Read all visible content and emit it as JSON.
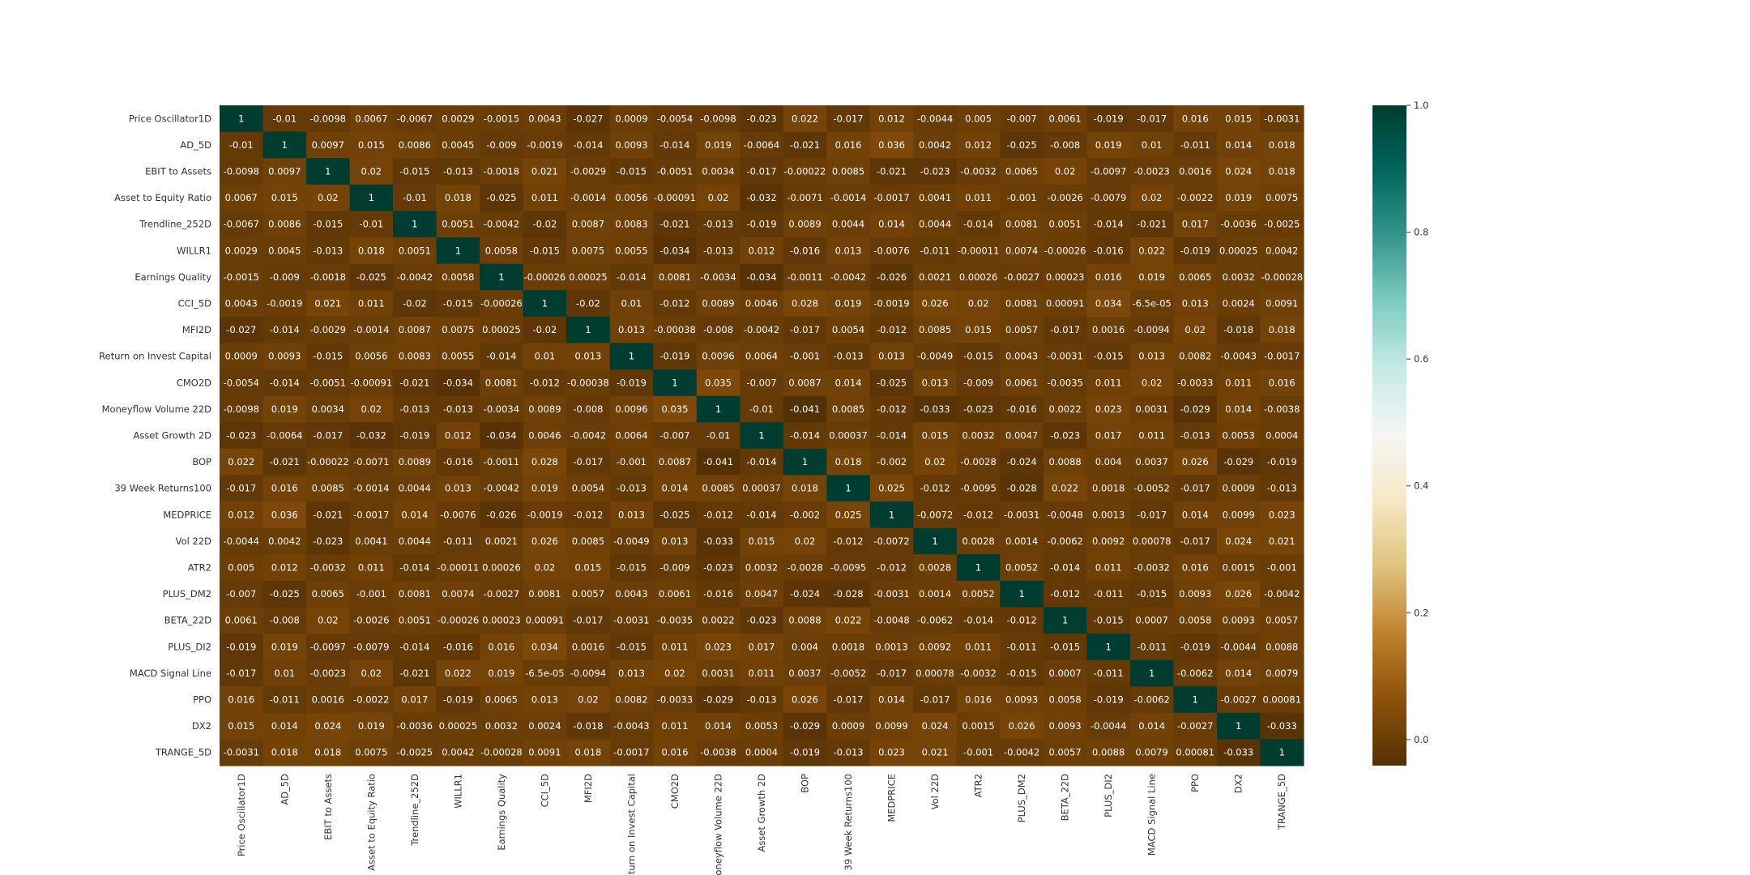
{
  "chart_data": {
    "type": "heatmap",
    "title": "",
    "xlabel": "",
    "ylabel": "",
    "labels": [
      "Price Oscillator1D",
      "AD_5D",
      "EBIT to Assets",
      "Asset to Equity Ratio",
      "Trendline_252D",
      "WILLR1",
      "Earnings Quality",
      "CCI_5D",
      "MFI2D",
      "Return on Invest Capital",
      "CMO2D",
      "Moneyflow Volume 22D",
      "Asset Growth 2D",
      "BOP",
      "39 Week Returns100",
      "MEDPRICE",
      "Vol 22D",
      "ATR2",
      "PLUS_DM2",
      "BETA_22D",
      "PLUS_DI2",
      "MACD Signal Line",
      "PPO",
      "DX2",
      "TRANGE_5D"
    ],
    "matrix_text": [
      [
        "1",
        "-0.01",
        "-0.0098",
        "0.0067",
        "-0.0067",
        "0.0029",
        "-0.0015",
        "0.0043",
        "-0.027",
        "0.0009",
        "-0.0054",
        "-0.0098",
        "-0.023",
        "0.022",
        "-0.017",
        "0.012",
        "-0.0044",
        "0.005",
        "-0.007",
        "0.0061",
        "-0.019",
        "-0.017",
        "0.016",
        "0.015",
        "-0.0031"
      ],
      [
        "-0.01",
        "1",
        "0.0097",
        "0.015",
        "0.0086",
        "0.0045",
        "-0.009",
        "-0.0019",
        "-0.014",
        "0.0093",
        "-0.014",
        "0.019",
        "-0.0064",
        "-0.021",
        "0.016",
        "0.036",
        "0.0042",
        "0.012",
        "-0.025",
        "-0.008",
        "0.019",
        "0.01",
        "-0.011",
        "0.014",
        "0.018"
      ],
      [
        "-0.0098",
        "0.0097",
        "1",
        "0.02",
        "-0.015",
        "-0.013",
        "-0.0018",
        "0.021",
        "-0.0029",
        "-0.015",
        "-0.0051",
        "0.0034",
        "-0.017",
        "-0.00022",
        "0.0085",
        "-0.021",
        "-0.023",
        "-0.0032",
        "0.0065",
        "0.02",
        "-0.0097",
        "-0.0023",
        "0.0016",
        "0.024",
        "0.018"
      ],
      [
        "0.0067",
        "0.015",
        "0.02",
        "1",
        "-0.01",
        "0.018",
        "-0.025",
        "0.011",
        "-0.0014",
        "0.0056",
        "-0.00091",
        "0.02",
        "-0.032",
        "-0.0071",
        "-0.0014",
        "-0.0017",
        "0.0041",
        "0.011",
        "-0.001",
        "-0.0026",
        "-0.0079",
        "0.02",
        "-0.0022",
        "0.019",
        "0.0075"
      ],
      [
        "-0.0067",
        "0.0086",
        "-0.015",
        "-0.01",
        "1",
        "0.0051",
        "-0.0042",
        "-0.02",
        "0.0087",
        "0.0083",
        "-0.021",
        "-0.013",
        "-0.019",
        "0.0089",
        "0.0044",
        "0.014",
        "0.0044",
        "-0.014",
        "0.0081",
        "0.0051",
        "-0.014",
        "-0.021",
        "0.017",
        "-0.0036",
        "-0.0025"
      ],
      [
        "0.0029",
        "0.0045",
        "-0.013",
        "0.018",
        "0.0051",
        "1",
        "0.0058",
        "-0.015",
        "0.0075",
        "0.0055",
        "-0.034",
        "-0.013",
        "0.012",
        "-0.016",
        "0.013",
        "-0.0076",
        "-0.011",
        "-0.00011",
        "0.0074",
        "-0.00026",
        "-0.016",
        "0.022",
        "-0.019",
        "0.00025",
        "0.0042"
      ],
      [
        "-0.0015",
        "-0.009",
        "-0.0018",
        "-0.025",
        "-0.0042",
        "0.0058",
        "1",
        "-0.00026",
        "0.00025",
        "-0.014",
        "0.0081",
        "-0.0034",
        "-0.034",
        "-0.0011",
        "-0.0042",
        "-0.026",
        "0.0021",
        "0.00026",
        "-0.0027",
        "0.00023",
        "0.016",
        "0.019",
        "0.0065",
        "0.0032",
        "-0.00028"
      ],
      [
        "0.0043",
        "-0.0019",
        "0.021",
        "0.011",
        "-0.02",
        "-0.015",
        "-0.00026",
        "1",
        "-0.02",
        "0.01",
        "-0.012",
        "0.0089",
        "0.0046",
        "0.028",
        "0.019",
        "-0.0019",
        "0.026",
        "0.02",
        "0.0081",
        "0.00091",
        "0.034",
        "-6.5e-05",
        "0.013",
        "0.0024",
        "0.0091"
      ],
      [
        "-0.027",
        "-0.014",
        "-0.0029",
        "-0.0014",
        "0.0087",
        "0.0075",
        "0.00025",
        "-0.02",
        "1",
        "0.013",
        "-0.00038",
        "-0.008",
        "-0.0042",
        "-0.017",
        "0.0054",
        "-0.012",
        "0.0085",
        "0.015",
        "0.0057",
        "-0.017",
        "0.0016",
        "-0.0094",
        "0.02",
        "-0.018",
        "0.018"
      ],
      [
        "0.0009",
        "0.0093",
        "-0.015",
        "0.0056",
        "0.0083",
        "0.0055",
        "-0.014",
        "0.01",
        "0.013",
        "1",
        "-0.019",
        "0.0096",
        "0.0064",
        "-0.001",
        "-0.013",
        "0.013",
        "-0.0049",
        "-0.015",
        "0.0043",
        "-0.0031",
        "-0.015",
        "0.013",
        "0.0082",
        "-0.0043",
        "-0.0017"
      ],
      [
        "-0.0054",
        "-0.014",
        "-0.0051",
        "-0.00091",
        "-0.021",
        "-0.034",
        "0.0081",
        "-0.012",
        "-0.00038",
        "-0.019",
        "1",
        "0.035",
        "-0.007",
        "0.0087",
        "0.014",
        "-0.025",
        "0.013",
        "-0.009",
        "0.0061",
        "-0.0035",
        "0.011",
        "0.02",
        "-0.0033",
        "0.011",
        "0.016"
      ],
      [
        "-0.0098",
        "0.019",
        "0.0034",
        "0.02",
        "-0.013",
        "-0.013",
        "-0.0034",
        "0.0089",
        "-0.008",
        "0.0096",
        "0.035",
        "1",
        "-0.01",
        "-0.041",
        "0.0085",
        "-0.012",
        "-0.033",
        "-0.023",
        "-0.016",
        "0.0022",
        "0.023",
        "0.0031",
        "-0.029",
        "0.014",
        "-0.0038"
      ],
      [
        "-0.023",
        "-0.0064",
        "-0.017",
        "-0.032",
        "-0.019",
        "0.012",
        "-0.034",
        "0.0046",
        "-0.0042",
        "0.0064",
        "-0.007",
        "-0.01",
        "1",
        "-0.014",
        "0.00037",
        "-0.014",
        "0.015",
        "0.0032",
        "0.0047",
        "-0.023",
        "0.017",
        "0.011",
        "-0.013",
        "0.0053",
        "0.0004"
      ],
      [
        "0.022",
        "-0.021",
        "-0.00022",
        "-0.0071",
        "0.0089",
        "-0.016",
        "-0.0011",
        "0.028",
        "-0.017",
        "-0.001",
        "0.0087",
        "-0.041",
        "-0.014",
        "1",
        "0.018",
        "-0.002",
        "0.02",
        "-0.0028",
        "-0.024",
        "0.0088",
        "0.004",
        "0.0037",
        "0.026",
        "-0.029",
        "-0.019"
      ],
      [
        "-0.017",
        "0.016",
        "0.0085",
        "-0.0014",
        "0.0044",
        "0.013",
        "-0.0042",
        "0.019",
        "0.0054",
        "-0.013",
        "0.014",
        "0.0085",
        "0.00037",
        "0.018",
        "1",
        "0.025",
        "-0.012",
        "-0.0095",
        "-0.028",
        "0.022",
        "0.0018",
        "-0.0052",
        "-0.017",
        "0.0009",
        "-0.013"
      ],
      [
        "0.012",
        "0.036",
        "-0.021",
        "-0.0017",
        "0.014",
        "-0.0076",
        "-0.026",
        "-0.0019",
        "-0.012",
        "0.013",
        "-0.025",
        "-0.012",
        "-0.014",
        "-0.002",
        "0.025",
        "1",
        "-0.0072",
        "-0.012",
        "-0.0031",
        "-0.0048",
        "0.0013",
        "-0.017",
        "0.014",
        "0.0099",
        "0.023"
      ],
      [
        "-0.0044",
        "0.0042",
        "-0.023",
        "0.0041",
        "0.0044",
        "-0.011",
        "0.0021",
        "0.026",
        "0.0085",
        "-0.0049",
        "0.013",
        "-0.033",
        "0.015",
        "0.02",
        "-0.012",
        "-0.0072",
        "1",
        "0.0028",
        "0.0014",
        "-0.0062",
        "0.0092",
        "0.00078",
        "-0.017",
        "0.024",
        "0.021"
      ],
      [
        "0.005",
        "0.012",
        "-0.0032",
        "0.011",
        "-0.014",
        "-0.00011",
        "0.00026",
        "0.02",
        "0.015",
        "-0.015",
        "-0.009",
        "-0.023",
        "0.0032",
        "-0.0028",
        "-0.0095",
        "-0.012",
        "0.0028",
        "1",
        "0.0052",
        "-0.014",
        "0.011",
        "-0.0032",
        "0.016",
        "0.0015",
        "-0.001"
      ],
      [
        "-0.007",
        "-0.025",
        "0.0065",
        "-0.001",
        "0.0081",
        "0.0074",
        "-0.0027",
        "0.0081",
        "0.0057",
        "0.0043",
        "0.0061",
        "-0.016",
        "0.0047",
        "-0.024",
        "-0.028",
        "-0.0031",
        "0.0014",
        "0.0052",
        "1",
        "-0.012",
        "-0.011",
        "-0.015",
        "0.0093",
        "0.026",
        "-0.0042"
      ],
      [
        "0.0061",
        "-0.008",
        "0.02",
        "-0.0026",
        "0.0051",
        "-0.00026",
        "0.00023",
        "0.00091",
        "-0.017",
        "-0.0031",
        "-0.0035",
        "0.0022",
        "-0.023",
        "0.0088",
        "0.022",
        "-0.0048",
        "-0.0062",
        "-0.014",
        "-0.012",
        "1",
        "-0.015",
        "0.0007",
        "0.0058",
        "0.0093",
        "0.0057"
      ],
      [
        "-0.019",
        "0.019",
        "-0.0097",
        "-0.0079",
        "-0.014",
        "-0.016",
        "0.016",
        "0.034",
        "0.0016",
        "-0.015",
        "0.011",
        "0.023",
        "0.017",
        "0.004",
        "0.0018",
        "0.0013",
        "0.0092",
        "0.011",
        "-0.011",
        "-0.015",
        "1",
        "-0.011",
        "-0.019",
        "-0.0044",
        "0.0088"
      ],
      [
        "-0.017",
        "0.01",
        "-0.0023",
        "0.02",
        "-0.021",
        "0.022",
        "0.019",
        "-6.5e-05",
        "-0.0094",
        "0.013",
        "0.02",
        "0.0031",
        "0.011",
        "0.0037",
        "-0.0052",
        "-0.017",
        "0.00078",
        "-0.0032",
        "-0.015",
        "0.0007",
        "-0.011",
        "1",
        "-0.0062",
        "0.014",
        "0.0079"
      ],
      [
        "0.016",
        "-0.011",
        "0.0016",
        "-0.0022",
        "0.017",
        "-0.019",
        "0.0065",
        "0.013",
        "0.02",
        "0.0082",
        "-0.0033",
        "-0.029",
        "-0.013",
        "0.026",
        "-0.017",
        "0.014",
        "-0.017",
        "0.016",
        "0.0093",
        "0.0058",
        "-0.019",
        "-0.0062",
        "1",
        "-0.0027",
        "0.00081"
      ],
      [
        "0.015",
        "0.014",
        "0.024",
        "0.019",
        "-0.0036",
        "0.00025",
        "0.0032",
        "0.0024",
        "-0.018",
        "-0.0043",
        "0.011",
        "0.014",
        "0.0053",
        "-0.029",
        "0.0009",
        "0.0099",
        "0.024",
        "0.0015",
        "0.026",
        "0.0093",
        "-0.0044",
        "0.014",
        "-0.0027",
        "1",
        "-0.033"
      ],
      [
        "-0.0031",
        "0.018",
        "0.018",
        "0.0075",
        "-0.0025",
        "0.0042",
        "-0.00028",
        "0.0091",
        "0.018",
        "-0.0017",
        "0.016",
        "-0.0038",
        "0.0004",
        "-0.019",
        "-0.013",
        "0.023",
        "0.021",
        "-0.001",
        "-0.0042",
        "0.0057",
        "0.0088",
        "0.0079",
        "0.00081",
        "-0.033",
        "1"
      ]
    ],
    "colorbar": {
      "colormap": "BrBG",
      "vmin": -0.041,
      "vmax": 1.0,
      "ticks": [
        "0.0",
        "0.2",
        "0.4",
        "0.6",
        "0.8",
        "1.0"
      ],
      "tick_values": [
        0.0,
        0.2,
        0.4,
        0.6,
        0.8,
        1.0
      ]
    },
    "annotation_color": "#ffffff",
    "legend": "colorbar-right",
    "grid": false
  }
}
